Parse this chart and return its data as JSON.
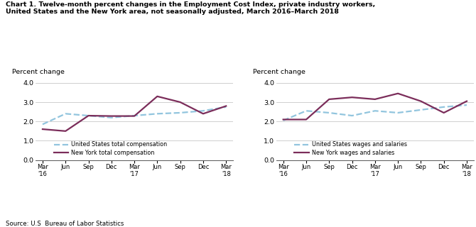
{
  "title_line1": "Chart 1. Twelve-month percent changes in the Employment Cost Index, private industry workers,",
  "title_line2": "United States and the New York area, not seasonally adjusted, March 2016–March 2018",
  "source": "Source: U.S  Bureau of Labor Statistics",
  "x_labels": [
    "Mar\n'16",
    "Jun",
    "Sep",
    "Dec",
    "Mar\n'17",
    "Jun",
    "Sep",
    "Dec",
    "Mar\n'18"
  ],
  "ylim": [
    0.0,
    4.0
  ],
  "yticks": [
    0.0,
    1.0,
    2.0,
    3.0,
    4.0
  ],
  "ylabel": "Percent change",
  "chart1": {
    "us_total_comp": [
      1.85,
      2.4,
      2.3,
      2.2,
      2.3,
      2.4,
      2.45,
      2.55,
      2.75
    ],
    "ny_total_comp": [
      1.6,
      1.5,
      2.3,
      2.28,
      2.28,
      3.3,
      3.0,
      2.4,
      2.8
    ],
    "legend1": "United States total compensation",
    "legend2": "New York total compensation"
  },
  "chart2": {
    "us_wages_sal": [
      2.05,
      2.55,
      2.45,
      2.3,
      2.55,
      2.45,
      2.6,
      2.75,
      2.85
    ],
    "ny_wages_sal": [
      2.1,
      2.1,
      3.15,
      3.25,
      3.15,
      3.45,
      3.05,
      2.45,
      3.05
    ],
    "legend1": "United States wages and salaries",
    "legend2": "New York wages and salaries"
  },
  "us_color": "#92C5DE",
  "ny_color": "#7B2D5A",
  "us_linestyle": "--",
  "ny_linestyle": "-",
  "linewidth": 1.6,
  "bg_color": "#FFFFFF",
  "grid_color": "#C8C8C8"
}
